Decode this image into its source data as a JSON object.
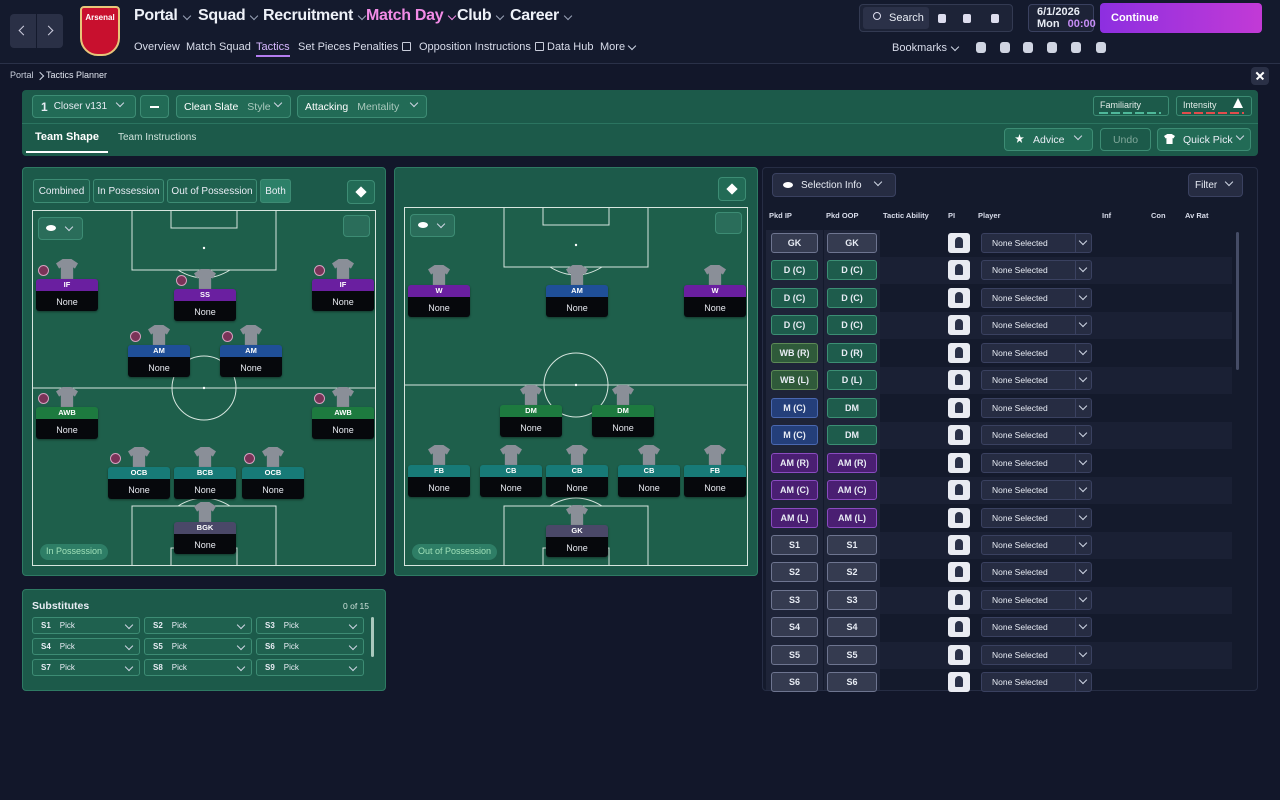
{
  "nav": {
    "club": "Arsenal",
    "main": [
      "Portal",
      "Squad",
      "Recruitment",
      "Match Day",
      "Club",
      "Career"
    ],
    "sub": [
      "Overview",
      "Match Squad",
      "Tactics",
      "Set Pieces",
      "Penalties",
      "Opposition Instructions",
      "Data Hub",
      "More"
    ],
    "search": "Search",
    "date": "6/1/2026",
    "day": "Mon",
    "time": "00:00",
    "continue": "Continue",
    "bookmarks": "Bookmarks"
  },
  "breadcrumb": [
    "Portal",
    "Tactics Planner"
  ],
  "toolbar": {
    "tactic_number": "1",
    "tactic_name": "Closer v131",
    "style_value": "Clean Slate",
    "style_label": "Style",
    "mentality_value": "Attacking",
    "mentality_label": "Mentality",
    "familiarity": "Familiarity",
    "intensity": "Intensity"
  },
  "tabs": [
    "Team Shape",
    "Team Instructions"
  ],
  "actions": {
    "advice": "Advice",
    "undo": "Undo",
    "quick_pick": "Quick Pick"
  },
  "phase_tabs": [
    "Combined",
    "In Possession",
    "Out of Possession",
    "Both"
  ],
  "pitches": [
    {
      "label": "In Possession",
      "players": [
        {
          "role": "IF",
          "player": "None"
        },
        {
          "role": "SS",
          "player": "None"
        },
        {
          "role": "IF",
          "player": "None"
        },
        {
          "role": "AM",
          "player": "None"
        },
        {
          "role": "AM",
          "player": "None"
        },
        {
          "role": "AWB",
          "player": "None"
        },
        {
          "role": "AWB",
          "player": "None"
        },
        {
          "role": "OCB",
          "player": "None"
        },
        {
          "role": "BCB",
          "player": "None"
        },
        {
          "role": "OCB",
          "player": "None"
        },
        {
          "role": "BGK",
          "player": "None"
        }
      ]
    },
    {
      "label": "Out of Possession",
      "players": [
        {
          "role": "W",
          "player": "None"
        },
        {
          "role": "AM",
          "player": "None"
        },
        {
          "role": "W",
          "player": "None"
        },
        {
          "role": "DM",
          "player": "None"
        },
        {
          "role": "DM",
          "player": "None"
        },
        {
          "role": "FB",
          "player": "None"
        },
        {
          "role": "CB",
          "player": "None"
        },
        {
          "role": "CB",
          "player": "None"
        },
        {
          "role": "CB",
          "player": "None"
        },
        {
          "role": "FB",
          "player": "None"
        },
        {
          "role": "GK",
          "player": "None"
        }
      ]
    }
  ],
  "substitutes": {
    "title": "Substitutes",
    "count": "0 of 15",
    "slots": [
      {
        "slot": "S1",
        "value": "Pick"
      },
      {
        "slot": "S2",
        "value": "Pick"
      },
      {
        "slot": "S3",
        "value": "Pick"
      },
      {
        "slot": "S4",
        "value": "Pick"
      },
      {
        "slot": "S5",
        "value": "Pick"
      },
      {
        "slot": "S6",
        "value": "Pick"
      },
      {
        "slot": "S7",
        "value": "Pick"
      },
      {
        "slot": "S8",
        "value": "Pick"
      },
      {
        "slot": "S9",
        "value": "Pick"
      }
    ]
  },
  "selection": {
    "title": "Selection Info",
    "filter": "Filter",
    "columns": [
      "Pkd IP",
      "Pkd OOP",
      "Tactic Ability",
      "PI",
      "Player",
      "Inf",
      "Con",
      "Av Rat"
    ],
    "rows": [
      {
        "ip": "GK",
        "oop": "GK",
        "player": "None Selected"
      },
      {
        "ip": "D (C)",
        "oop": "D (C)",
        "player": "None Selected"
      },
      {
        "ip": "D (C)",
        "oop": "D (C)",
        "player": "None Selected"
      },
      {
        "ip": "D (C)",
        "oop": "D (C)",
        "player": "None Selected"
      },
      {
        "ip": "WB (R)",
        "oop": "D (R)",
        "player": "None Selected"
      },
      {
        "ip": "WB (L)",
        "oop": "D (L)",
        "player": "None Selected"
      },
      {
        "ip": "M (C)",
        "oop": "DM",
        "player": "None Selected"
      },
      {
        "ip": "M (C)",
        "oop": "DM",
        "player": "None Selected"
      },
      {
        "ip": "AM (R)",
        "oop": "AM (R)",
        "player": "None Selected"
      },
      {
        "ip": "AM (C)",
        "oop": "AM (C)",
        "player": "None Selected"
      },
      {
        "ip": "AM (L)",
        "oop": "AM (L)",
        "player": "None Selected"
      },
      {
        "ip": "S1",
        "oop": "S1",
        "player": "None Selected"
      },
      {
        "ip": "S2",
        "oop": "S2",
        "player": "None Selected"
      },
      {
        "ip": "S3",
        "oop": "S3",
        "player": "None Selected"
      },
      {
        "ip": "S4",
        "oop": "S4",
        "player": "None Selected"
      },
      {
        "ip": "S5",
        "oop": "S5",
        "player": "None Selected"
      },
      {
        "ip": "S6",
        "oop": "S6",
        "player": "None Selected"
      }
    ]
  }
}
